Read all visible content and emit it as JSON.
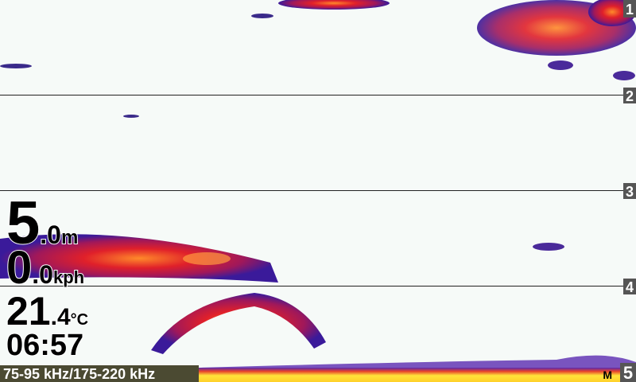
{
  "depth_scale": [
    "1",
    "2",
    "3",
    "4",
    "5"
  ],
  "readouts": {
    "depth": {
      "whole": "5",
      "decimal": ".0",
      "unit": "m"
    },
    "speed": {
      "whole": "0",
      "decimal": ".0",
      "unit": "kph"
    },
    "temperature": {
      "whole": "21",
      "decimal": ".4",
      "unit": "°C"
    },
    "time": "06:57"
  },
  "frequency": "75-95 kHz/175-220 kHz",
  "mode": "M"
}
